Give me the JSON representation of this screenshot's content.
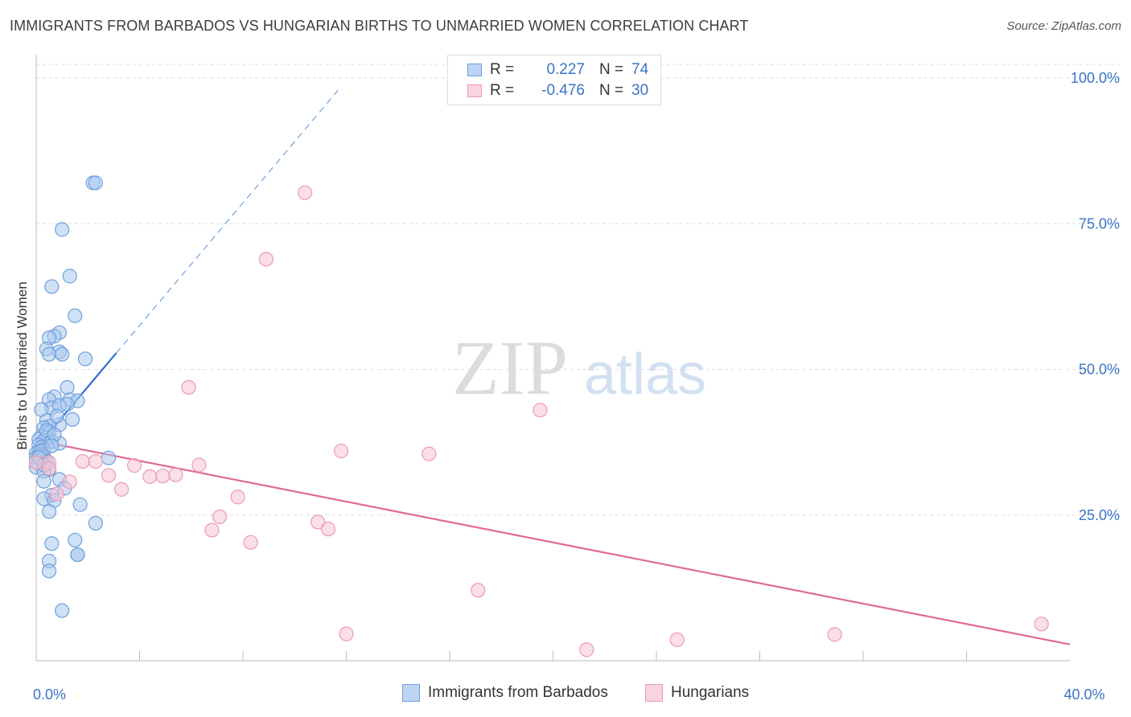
{
  "title": "IMMIGRANTS FROM BARBADOS VS HUNGARIAN BIRTHS TO UNMARRIED WOMEN CORRELATION CHART",
  "source": "Source: ZipAtlas.com",
  "watermark": {
    "zip": "ZIP",
    "atlas": "atlas"
  },
  "colors": {
    "blue_fill": "#a9c8ee",
    "blue_stroke": "#6fa0dc",
    "blue_line": "#2f6fcf",
    "pink_fill": "#f6c4d2",
    "pink_stroke": "#ec9ab2",
    "pink_line": "#e06a96",
    "tick_text": "#3a74c4",
    "grid": "#dddddd"
  },
  "stats": [
    {
      "r_label": "R =",
      "r_value": "0.227",
      "n_label": "N =",
      "n_value": "74"
    },
    {
      "r_label": "R =",
      "r_value": "-0.476",
      "n_label": "N =",
      "n_value": "30"
    }
  ],
  "chart_data": {
    "type": "scatter",
    "title": "IMMIGRANTS FROM BARBADOS VS HUNGARIAN BIRTHS TO UNMARRIED WOMEN CORRELATION CHART",
    "xlabel": "",
    "ylabel": "Births to Unmarried Women",
    "xlim": [
      0,
      40
    ],
    "ylim": [
      0,
      104
    ],
    "x_tick_labels": [
      {
        "value": 0,
        "label": "0.0%"
      },
      {
        "value": 40,
        "label": "40.0%"
      }
    ],
    "y_tick_labels": [
      {
        "value": 25,
        "label": "25.0%"
      },
      {
        "value": 50,
        "label": "50.0%"
      },
      {
        "value": 75,
        "label": "75.0%"
      },
      {
        "value": 100,
        "label": "100.0%"
      }
    ],
    "x_minor_ticks": [
      4,
      8,
      12,
      16,
      20,
      24,
      28,
      32,
      36
    ],
    "legend_placement": "bottom-center",
    "series": [
      {
        "name": "Immigrants from Barbados",
        "color_key": "blue",
        "trend": {
          "solid_x": [
            0.0,
            3.1
          ],
          "y_at": [
            36.5,
            52.8
          ],
          "dashed_to_x": 11.7,
          "dashed_to_y": 98.0
        },
        "points": [
          [
            2.2,
            82.0
          ],
          [
            2.3,
            82.0
          ],
          [
            1.0,
            74.0
          ],
          [
            1.3,
            66.0
          ],
          [
            0.6,
            64.2
          ],
          [
            1.5,
            59.2
          ],
          [
            0.9,
            56.3
          ],
          [
            0.7,
            55.7
          ],
          [
            0.5,
            55.4
          ],
          [
            0.4,
            53.5
          ],
          [
            0.9,
            53.0
          ],
          [
            0.5,
            52.6
          ],
          [
            1.0,
            52.6
          ],
          [
            1.9,
            51.8
          ],
          [
            1.2,
            46.9
          ],
          [
            0.7,
            45.3
          ],
          [
            0.5,
            44.8
          ],
          [
            1.3,
            44.8
          ],
          [
            1.6,
            44.6
          ],
          [
            0.6,
            43.4
          ],
          [
            0.9,
            43.8
          ],
          [
            0.2,
            43.1
          ],
          [
            0.4,
            41.2
          ],
          [
            1.4,
            41.4
          ],
          [
            0.9,
            40.5
          ],
          [
            0.5,
            40.2
          ],
          [
            0.3,
            40.0
          ],
          [
            0.5,
            39.2
          ],
          [
            0.2,
            38.5
          ],
          [
            0.4,
            38.3
          ],
          [
            0.1,
            38.0
          ],
          [
            0.3,
            37.8
          ],
          [
            0.6,
            37.6
          ],
          [
            0.9,
            37.3
          ],
          [
            0.1,
            37.0
          ],
          [
            0.2,
            36.6
          ],
          [
            0.3,
            36.2
          ],
          [
            0.1,
            35.8
          ],
          [
            0.0,
            35.6
          ],
          [
            0.2,
            35.4
          ],
          [
            0.1,
            35.2
          ],
          [
            0.3,
            35.0
          ],
          [
            0.0,
            34.8
          ],
          [
            0.2,
            34.6
          ],
          [
            2.8,
            34.8
          ],
          [
            0.4,
            34.2
          ],
          [
            0.1,
            33.8
          ],
          [
            0.0,
            33.2
          ],
          [
            0.5,
            32.8
          ],
          [
            0.3,
            32.5
          ],
          [
            0.9,
            31.1
          ],
          [
            0.3,
            30.8
          ],
          [
            1.1,
            29.6
          ],
          [
            0.6,
            28.4
          ],
          [
            0.3,
            27.8
          ],
          [
            0.7,
            27.5
          ],
          [
            1.7,
            26.8
          ],
          [
            0.5,
            25.6
          ],
          [
            2.3,
            23.6
          ],
          [
            1.5,
            20.7
          ],
          [
            0.6,
            20.1
          ],
          [
            1.6,
            18.2
          ],
          [
            1.6,
            18.2
          ],
          [
            0.5,
            17.1
          ],
          [
            0.5,
            15.4
          ],
          [
            1.0,
            8.6
          ],
          [
            0.2,
            36.0
          ],
          [
            0.4,
            39.5
          ],
          [
            0.7,
            38.8
          ],
          [
            0.1,
            34.9
          ],
          [
            0.6,
            36.9
          ],
          [
            0.3,
            33.6
          ],
          [
            1.2,
            44.0
          ],
          [
            0.8,
            42.0
          ]
        ]
      },
      {
        "name": "Hungarians",
        "color_key": "pink",
        "trend": {
          "solid_x": [
            0.0,
            40.0
          ],
          "y_at": [
            37.8,
            2.8
          ]
        },
        "points": [
          [
            10.4,
            80.3
          ],
          [
            8.9,
            68.9
          ],
          [
            5.9,
            46.9
          ],
          [
            19.5,
            43.0
          ],
          [
            11.8,
            36.0
          ],
          [
            15.2,
            35.5
          ],
          [
            0.0,
            34.0
          ],
          [
            0.5,
            34.0
          ],
          [
            1.8,
            34.2
          ],
          [
            2.3,
            34.2
          ],
          [
            6.3,
            33.6
          ],
          [
            3.8,
            33.5
          ],
          [
            0.5,
            33.0
          ],
          [
            2.8,
            31.8
          ],
          [
            4.4,
            31.6
          ],
          [
            4.9,
            31.7
          ],
          [
            5.4,
            31.9
          ],
          [
            1.3,
            30.7
          ],
          [
            3.3,
            29.4
          ],
          [
            7.8,
            28.1
          ],
          [
            0.8,
            28.6
          ],
          [
            7.1,
            24.7
          ],
          [
            10.9,
            23.8
          ],
          [
            11.3,
            22.6
          ],
          [
            6.8,
            22.4
          ],
          [
            8.3,
            20.3
          ],
          [
            17.1,
            12.1
          ],
          [
            12.0,
            4.6
          ],
          [
            30.9,
            4.5
          ],
          [
            38.9,
            6.3
          ]
        ],
        "extra_points": [
          [
            21.3,
            1.9
          ],
          [
            24.8,
            3.6
          ]
        ]
      }
    ]
  },
  "legend": {
    "series_a": "Immigrants from Barbados",
    "series_b": "Hungarians"
  }
}
